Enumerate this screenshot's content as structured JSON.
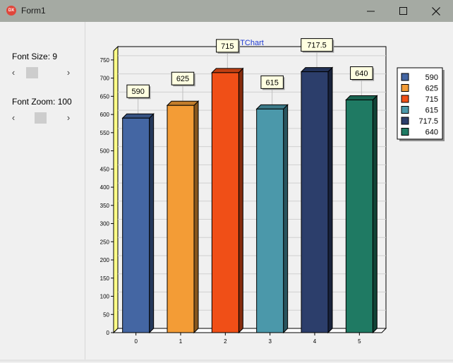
{
  "window": {
    "title": "Form1",
    "app_icon": "delphi-app-icon",
    "icon_text": "DX"
  },
  "controls": {
    "font_size": {
      "label": "Font Size: 9"
    },
    "font_zoom": {
      "label": "Font Zoom: 100"
    }
  },
  "chart_data": {
    "type": "bar",
    "title": "TChart",
    "categories": [
      "0",
      "1",
      "2",
      "3",
      "4",
      "5"
    ],
    "values": [
      590,
      625,
      715,
      615,
      717.5,
      640
    ],
    "value_labels": [
      "590",
      "625",
      "715",
      "615",
      "717.5",
      "640"
    ],
    "colors": [
      "#4466a3",
      "#f39c36",
      "#f04f17",
      "#4b98aa",
      "#2c3e6b",
      "#1f7a63"
    ],
    "ylim": [
      0,
      775
    ],
    "yticks": [
      0,
      50,
      100,
      150,
      200,
      250,
      300,
      350,
      400,
      450,
      500,
      550,
      600,
      650,
      700,
      750
    ],
    "grid": true,
    "legend": {
      "position": "right",
      "entries": [
        "590",
        "625",
        "715",
        "615",
        "717.5",
        "640"
      ]
    },
    "style": "3d"
  }
}
